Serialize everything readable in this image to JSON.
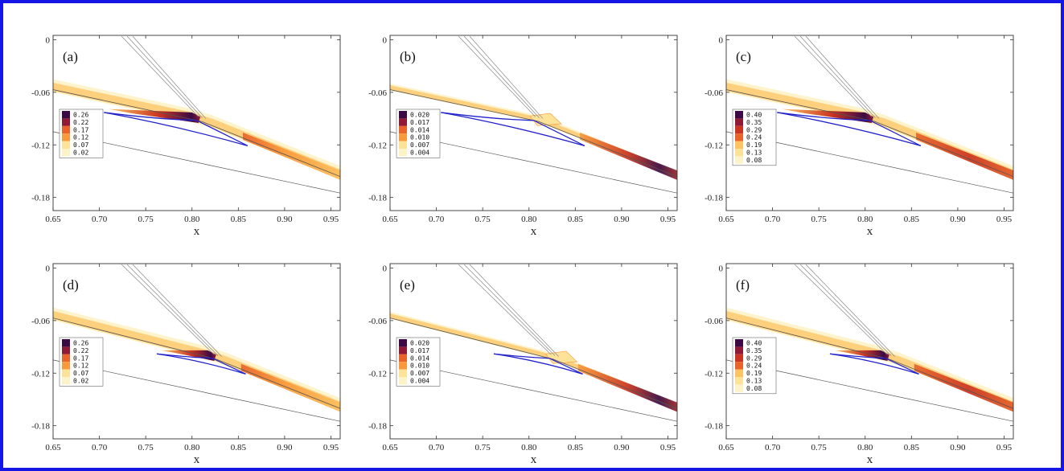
{
  "colors": {
    "frame": "#1515e6",
    "airfoil": "#2222cc",
    "wall": "#555555",
    "colormap": [
      "#fdf3c8",
      "#fde39a",
      "#fcc463",
      "#f89a3c",
      "#e8642a",
      "#c93522",
      "#8f1a35",
      "#3b0a45"
    ]
  },
  "chart_data": [
    {
      "type": "heatmap",
      "panel_label": "(a)",
      "xlabel": "x",
      "ylabel": "",
      "xlim": [
        0.65,
        0.96
      ],
      "ylim": [
        -0.195,
        0.005
      ],
      "x_ticks": [
        "0.65",
        "0.70",
        "0.75",
        "0.80",
        "0.85",
        "0.90",
        "0.95"
      ],
      "y_ticks": [
        "0",
        "-0.06",
        "-0.12",
        "-0.18"
      ],
      "legend_levels": [
        "0.26",
        "0.22",
        "0.17",
        "0.12",
        "0.07",
        "0.02"
      ],
      "airfoil": {
        "leading_edge": [
          0.705,
          -0.083
        ],
        "tip": [
          0.805,
          -0.092
        ],
        "trailing_edge": [
          0.86,
          -0.121
        ]
      },
      "flap_start_x": 0.81,
      "peak_x": 0.8,
      "max_band": "upstream"
    },
    {
      "type": "heatmap",
      "panel_label": "(b)",
      "xlabel": "x",
      "ylabel": "",
      "xlim": [
        0.65,
        0.96
      ],
      "ylim": [
        -0.195,
        0.005
      ],
      "x_ticks": [
        "0.65",
        "0.70",
        "0.75",
        "0.80",
        "0.85",
        "0.90",
        "0.95"
      ],
      "y_ticks": [
        "0",
        "-0.06",
        "-0.12",
        "-0.18"
      ],
      "legend_levels": [
        "0.020",
        "0.017",
        "0.014",
        "0.010",
        "0.007",
        "0.004"
      ],
      "airfoil": {
        "leading_edge": [
          0.705,
          -0.083
        ],
        "tip": [
          0.805,
          -0.092
        ],
        "trailing_edge": [
          0.86,
          -0.121
        ]
      },
      "flap_start_x": 0.81,
      "peak_x": 0.92,
      "max_band": "downstream"
    },
    {
      "type": "heatmap",
      "panel_label": "(c)",
      "xlabel": "x",
      "ylabel": "",
      "xlim": [
        0.65,
        0.96
      ],
      "ylim": [
        -0.195,
        0.005
      ],
      "x_ticks": [
        "0.65",
        "0.70",
        "0.75",
        "0.80",
        "0.85",
        "0.90",
        "0.95"
      ],
      "y_ticks": [
        "0",
        "-0.06",
        "-0.12",
        "-0.18"
      ],
      "legend_levels": [
        "0.40",
        "0.35",
        "0.29",
        "0.24",
        "0.19",
        "0.13",
        "0.08"
      ],
      "airfoil": {
        "leading_edge": [
          0.705,
          -0.083
        ],
        "tip": [
          0.805,
          -0.092
        ],
        "trailing_edge": [
          0.86,
          -0.121
        ]
      },
      "flap_start_x": 0.81,
      "peak_x": 0.8,
      "max_band": "both"
    },
    {
      "type": "heatmap",
      "panel_label": "(d)",
      "xlabel": "x",
      "ylabel": "",
      "xlim": [
        0.65,
        0.96
      ],
      "ylim": [
        -0.195,
        0.005
      ],
      "x_ticks": [
        "0.65",
        "0.70",
        "0.75",
        "0.80",
        "0.85",
        "0.90",
        "0.95"
      ],
      "y_ticks": [
        "0",
        "-0.06",
        "-0.12",
        "-0.18"
      ],
      "legend_levels": [
        "0.26",
        "0.22",
        "0.17",
        "0.12",
        "0.07",
        "0.02"
      ],
      "airfoil": {
        "leading_edge": [
          0.762,
          -0.098
        ],
        "tip": [
          0.822,
          -0.103
        ],
        "trailing_edge": [
          0.858,
          -0.121
        ]
      },
      "flap_start_x": 0.826,
      "peak_x": 0.81,
      "max_band": "upstream"
    },
    {
      "type": "heatmap",
      "panel_label": "(e)",
      "xlabel": "x",
      "ylabel": "",
      "xlim": [
        0.65,
        0.96
      ],
      "ylim": [
        -0.195,
        0.005
      ],
      "x_ticks": [
        "0.65",
        "0.70",
        "0.75",
        "0.80",
        "0.85",
        "0.90",
        "0.95"
      ],
      "y_ticks": [
        "0",
        "-0.06",
        "-0.12",
        "-0.18"
      ],
      "legend_levels": [
        "0.020",
        "0.017",
        "0.014",
        "0.010",
        "0.007",
        "0.004"
      ],
      "airfoil": {
        "leading_edge": [
          0.762,
          -0.098
        ],
        "tip": [
          0.822,
          -0.103
        ],
        "trailing_edge": [
          0.858,
          -0.121
        ]
      },
      "flap_start_x": 0.826,
      "peak_x": 0.93,
      "max_band": "downstream"
    },
    {
      "type": "heatmap",
      "panel_label": "(f)",
      "xlabel": "x",
      "ylabel": "",
      "xlim": [
        0.65,
        0.96
      ],
      "ylim": [
        -0.195,
        0.005
      ],
      "x_ticks": [
        "0.65",
        "0.70",
        "0.75",
        "0.80",
        "0.85",
        "0.90",
        "0.95"
      ],
      "y_ticks": [
        "0",
        "-0.06",
        "-0.12",
        "-0.18"
      ],
      "legend_levels": [
        "0.40",
        "0.35",
        "0.29",
        "0.24",
        "0.19",
        "0.13",
        "0.08"
      ],
      "airfoil": {
        "leading_edge": [
          0.762,
          -0.098
        ],
        "tip": [
          0.822,
          -0.103
        ],
        "trailing_edge": [
          0.858,
          -0.121
        ]
      },
      "flap_start_x": 0.826,
      "peak_x": 0.81,
      "max_band": "both"
    }
  ]
}
